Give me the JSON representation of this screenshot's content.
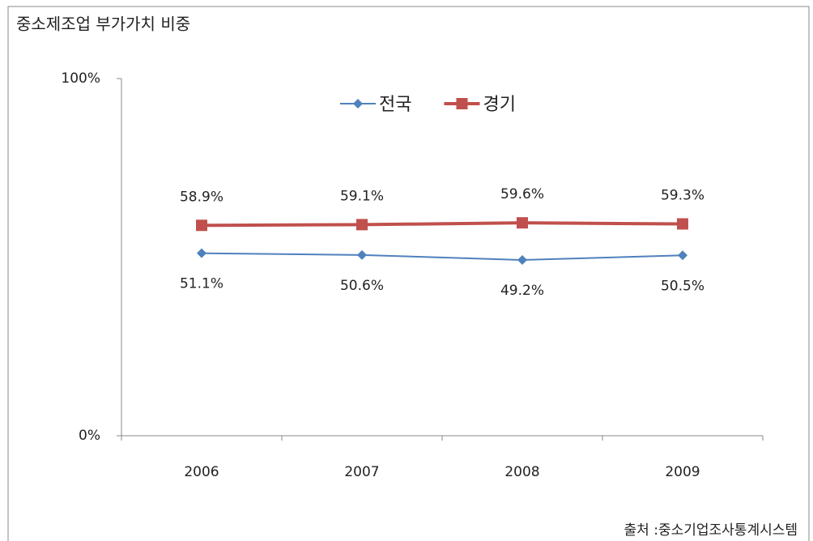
{
  "chart_data": {
    "type": "line",
    "title": "중소제조업 부가가치 비중",
    "categories": [
      "2006",
      "2007",
      "2008",
      "2009"
    ],
    "series": [
      {
        "name": "전국",
        "color": "#4f81bd",
        "marker": "diamond",
        "values": [
          51.1,
          50.6,
          49.2,
          50.5
        ],
        "value_labels": [
          "51.1%",
          "50.6%",
          "49.2%",
          "50.5%"
        ],
        "label_position": "below"
      },
      {
        "name": "경기",
        "color": "#c0504d",
        "marker": "square",
        "values": [
          58.9,
          59.1,
          59.6,
          59.3
        ],
        "value_labels": [
          "58.9%",
          "59.1%",
          "59.6%",
          "59.3%"
        ],
        "label_position": "above"
      }
    ],
    "ylim": [
      0,
      100
    ],
    "yticks": [
      {
        "value": 0,
        "label": "0%"
      },
      {
        "value": 100,
        "label": "100%"
      }
    ],
    "legend": "top",
    "source": "출처 :중소기업조사통계시스템"
  }
}
